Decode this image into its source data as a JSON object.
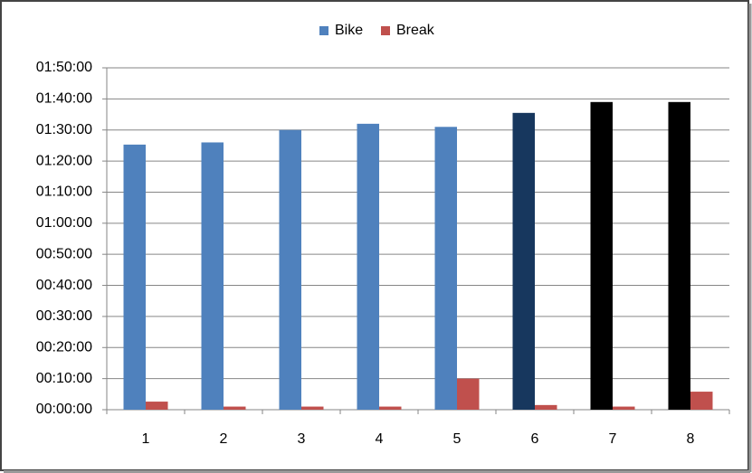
{
  "chart_data": {
    "type": "bar",
    "categories": [
      "1",
      "2",
      "3",
      "4",
      "5",
      "6",
      "7",
      "8"
    ],
    "series": [
      {
        "name": "Bike",
        "color": "#4f81bd",
        "colors": [
          "#4f81bd",
          "#4f81bd",
          "#4f81bd",
          "#4f81bd",
          "#4f81bd",
          "#17375e",
          "#000000",
          "#000000"
        ],
        "values": [
          85.3,
          86,
          90,
          92,
          91,
          95.5,
          99,
          99
        ]
      },
      {
        "name": "Break",
        "color": "#c0504d",
        "values": [
          2.6,
          1,
          1,
          1,
          10,
          1.5,
          1,
          5.8
        ]
      }
    ],
    "ylim": [
      0,
      110
    ],
    "yticks": [
      {
        "value": 0,
        "label": "00:00:00"
      },
      {
        "value": 10,
        "label": "00:10:00"
      },
      {
        "value": 20,
        "label": "00:20:00"
      },
      {
        "value": 30,
        "label": "00:30:00"
      },
      {
        "value": 40,
        "label": "00:40:00"
      },
      {
        "value": 50,
        "label": "00:50:00"
      },
      {
        "value": 60,
        "label": "01:00:00"
      },
      {
        "value": 70,
        "label": "01:10:00"
      },
      {
        "value": 80,
        "label": "01:20:00"
      },
      {
        "value": 90,
        "label": "01:30:00"
      },
      {
        "value": 100,
        "label": "01:40:00"
      },
      {
        "value": 110,
        "label": "01:50:00"
      }
    ],
    "grid": true,
    "legend": "top"
  }
}
